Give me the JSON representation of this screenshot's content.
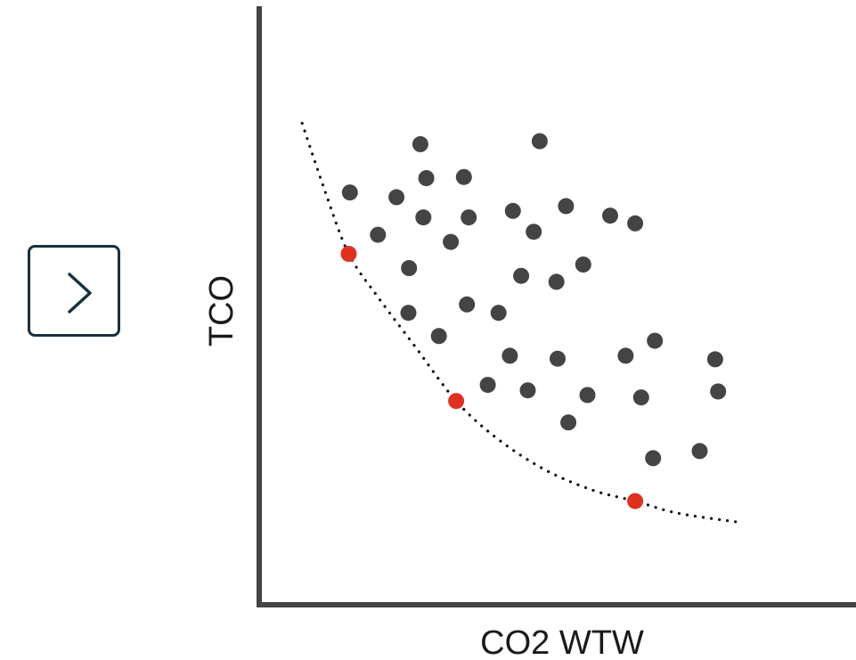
{
  "navigation": {
    "next_icon": "chevron-right-icon"
  },
  "colors": {
    "axis": "#444444",
    "point": "#444444",
    "pareto_point": "#e03020",
    "frontier": "#111111",
    "button_border": "#17323f"
  },
  "chart_data": {
    "type": "scatter",
    "xlabel": "CO2 WTW",
    "ylabel": "TCO",
    "xlim": [
      0,
      100
    ],
    "ylim": [
      0,
      100
    ],
    "grid": false,
    "legend": "none",
    "tick_labels": false,
    "series": [
      {
        "role": "solutions",
        "color": "#444444",
        "points": [
          [
            15.2,
            69.2
          ],
          [
            27.0,
            77.3
          ],
          [
            47.0,
            77.8
          ],
          [
            28.0,
            71.6
          ],
          [
            34.3,
            71.8
          ],
          [
            23.0,
            68.4
          ],
          [
            19.9,
            62.1
          ],
          [
            27.5,
            65.0
          ],
          [
            35.1,
            65.0
          ],
          [
            42.5,
            66.1
          ],
          [
            51.4,
            66.9
          ],
          [
            58.8,
            65.3
          ],
          [
            63.0,
            64.0
          ],
          [
            32.1,
            60.9
          ],
          [
            46.0,
            62.6
          ],
          [
            25.1,
            56.5
          ],
          [
            54.3,
            57.1
          ],
          [
            43.9,
            55.2
          ],
          [
            49.8,
            54.2
          ],
          [
            34.8,
            50.4
          ],
          [
            25.0,
            49.0
          ],
          [
            40.1,
            49.0
          ],
          [
            30.1,
            45.1
          ],
          [
            42.0,
            41.8
          ],
          [
            50.0,
            41.3
          ],
          [
            61.4,
            41.8
          ],
          [
            66.3,
            44.3
          ],
          [
            76.4,
            41.2
          ],
          [
            38.3,
            36.9
          ],
          [
            45.0,
            36.0
          ],
          [
            55.0,
            35.2
          ],
          [
            64.0,
            34.8
          ],
          [
            76.9,
            35.8
          ],
          [
            51.8,
            30.6
          ],
          [
            66.0,
            24.6
          ],
          [
            73.8,
            25.8
          ]
        ]
      },
      {
        "role": "pareto-optimal",
        "color": "#e03020",
        "points": [
          [
            15.0,
            58.9
          ],
          [
            33.0,
            34.2
          ],
          [
            63.0,
            17.4
          ]
        ]
      }
    ],
    "frontier": {
      "style": "dotted",
      "points": [
        [
          7.2,
          80.8
        ],
        [
          11.0,
          69.5
        ],
        [
          15.0,
          58.9
        ],
        [
          20.0,
          51.5
        ],
        [
          26.0,
          43.5
        ],
        [
          33.0,
          34.2
        ],
        [
          40.0,
          27.8
        ],
        [
          48.0,
          22.6
        ],
        [
          56.0,
          19.2
        ],
        [
          63.0,
          17.4
        ],
        [
          70.0,
          15.4
        ],
        [
          80.0,
          13.9
        ]
      ]
    }
  }
}
